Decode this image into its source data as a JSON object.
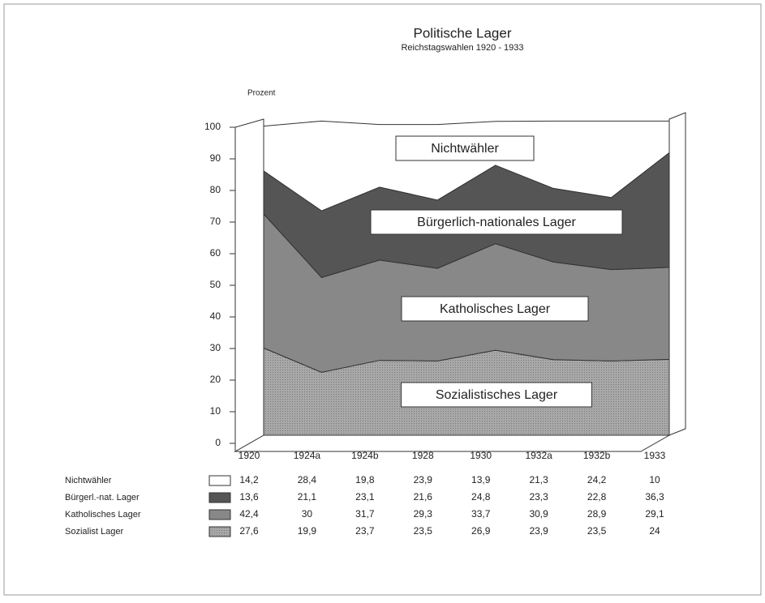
{
  "chart_data": {
    "type": "stacked_area",
    "title": "Politische Lager",
    "subtitle": "Reichstagswahlen 1920 - 1933",
    "ylabel": "Prozent",
    "categories": [
      "1920",
      "1924a",
      "1924b",
      "1928",
      "1930",
      "1932a",
      "1932b",
      "1933"
    ],
    "ylim": [
      0,
      100
    ],
    "yticks": [
      0,
      10,
      20,
      30,
      40,
      50,
      60,
      70,
      80,
      90,
      100
    ],
    "series": [
      {
        "name": "Nichtwähler",
        "color": "#ffffff",
        "values": [
          14.2,
          28.4,
          19.8,
          23.9,
          13.9,
          21.3,
          24.2,
          10
        ],
        "value_labels": [
          "14,2",
          "28,4",
          "19,8",
          "23,9",
          "13,9",
          "21,3",
          "24,2",
          "10"
        ]
      },
      {
        "name": "Bürgerl.-nat. Lager",
        "color": "#555555",
        "values": [
          13.6,
          21.1,
          23.1,
          21.6,
          24.8,
          23.3,
          22.8,
          36.3
        ],
        "value_labels": [
          "13,6",
          "21,1",
          "23,1",
          "21,6",
          "24,8",
          "23,3",
          "22,8",
          "36,3"
        ]
      },
      {
        "name": "Katholisches Lager",
        "color": "#888888",
        "values": [
          42.4,
          30,
          31.7,
          29.3,
          33.7,
          30.9,
          28.9,
          29.1
        ],
        "value_labels": [
          "42,4",
          "30",
          "31,7",
          "29,3",
          "33,7",
          "30,9",
          "28,9",
          "29,1"
        ]
      },
      {
        "name": "Sozialist Lager",
        "color": "#a8a8a8",
        "values": [
          27.6,
          19.9,
          23.7,
          23.5,
          26.9,
          23.9,
          23.5,
          24
        ],
        "value_labels": [
          "27,6",
          "19,9",
          "23,7",
          "23,5",
          "26,9",
          "23,9",
          "23,5",
          "24"
        ]
      }
    ],
    "annotations": [
      "Nichtwähler",
      "Bürgerlich-nationales Lager",
      "Katholisches Lager",
      "Sozialistisches Lager"
    ]
  }
}
